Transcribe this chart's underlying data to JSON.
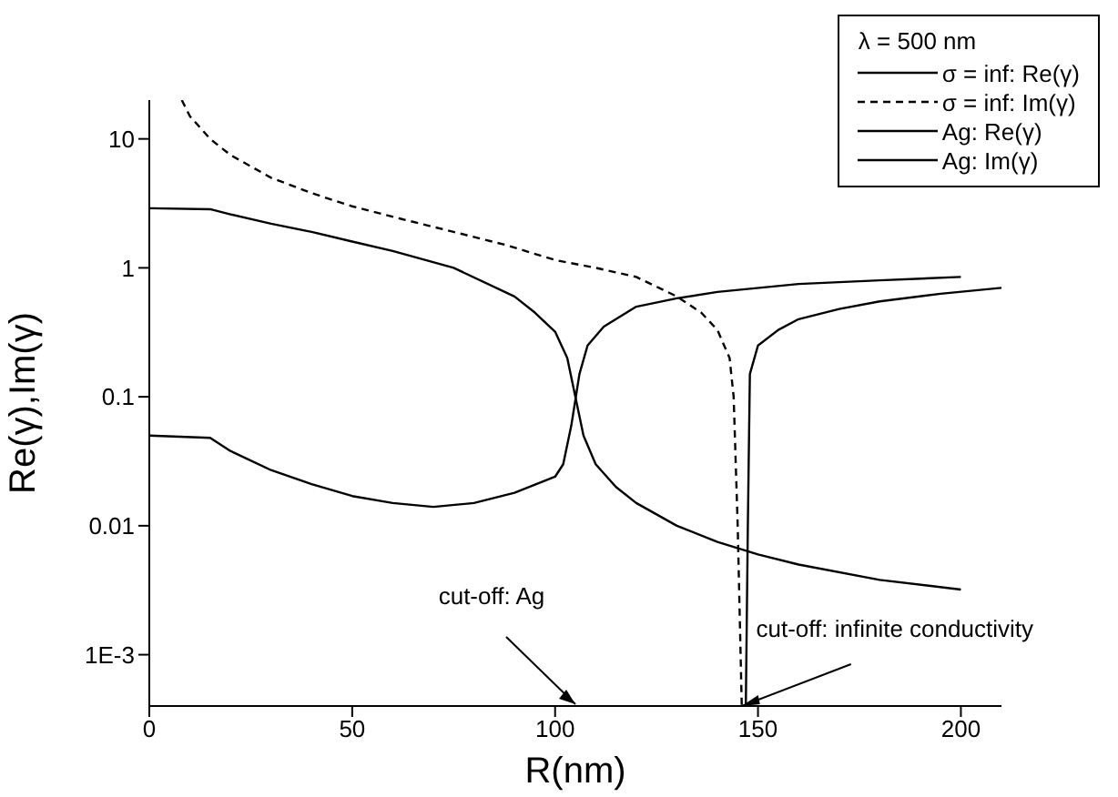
{
  "chart_data": {
    "type": "line",
    "xlabel": "R(nm)",
    "ylabel": "Re(γ),Im(γ)",
    "legend_title": "λ = 500 nm",
    "legend": "top right",
    "log": "y",
    "grid": false,
    "marker": "none",
    "xlim": [
      0,
      210
    ],
    "xticks": [
      0,
      50,
      100,
      150,
      200
    ],
    "ylim": [
      0.0004,
      20
    ],
    "yticks": [
      10,
      1,
      0.1,
      0.01,
      {
        "value": 0.001,
        "label": "1E-3"
      }
    ],
    "series": [
      {
        "name": "σ = inf: Re(γ)",
        "color": "#000000",
        "line_style": "solid",
        "x": [
          147,
          147.5,
          148,
          150,
          155,
          160,
          170,
          180,
          195,
          210
        ],
        "values": [
          0.0004,
          0.01,
          0.15,
          0.25,
          0.33,
          0.4,
          0.48,
          0.55,
          0.63,
          0.7
        ]
      },
      {
        "name": "σ = inf: Im(γ)",
        "color": "#000000",
        "line_style": "dashed",
        "x": [
          8,
          10,
          15,
          20,
          30,
          40,
          50,
          62,
          75,
          88,
          100,
          110,
          120,
          130,
          136,
          140,
          143,
          144,
          145,
          145.5,
          146
        ],
        "values": [
          20,
          15,
          10,
          7.5,
          5,
          3.8,
          3,
          2.4,
          1.9,
          1.5,
          1.15,
          1,
          0.85,
          0.6,
          0.45,
          0.33,
          0.2,
          0.1,
          0.01,
          0.002,
          0.0004
        ]
      },
      {
        "name": "Ag: Re(γ)",
        "color": "#000000",
        "line_style": "solid",
        "x": [
          0,
          15,
          20,
          30,
          40,
          50,
          60,
          70,
          80,
          90,
          100,
          102,
          104,
          106,
          108,
          112,
          120,
          130,
          140,
          160,
          180,
          200
        ],
        "values": [
          0.05,
          0.048,
          0.038,
          0.027,
          0.021,
          0.017,
          0.015,
          0.014,
          0.015,
          0.018,
          0.024,
          0.03,
          0.06,
          0.15,
          0.25,
          0.35,
          0.5,
          0.58,
          0.65,
          0.75,
          0.8,
          0.85
        ]
      },
      {
        "name": "Ag: Im(γ)",
        "color": "#000000",
        "line_style": "solid",
        "x": [
          0,
          15,
          20,
          30,
          40,
          50,
          60,
          75,
          90,
          95,
          100,
          103,
          105,
          107,
          110,
          115,
          120,
          130,
          140,
          150,
          160,
          180,
          200
        ],
        "values": [
          2.9,
          2.85,
          2.6,
          2.2,
          1.9,
          1.6,
          1.35,
          1,
          0.6,
          0.45,
          0.32,
          0.2,
          0.1,
          0.05,
          0.03,
          0.02,
          0.015,
          0.01,
          0.0075,
          0.006,
          0.005,
          0.0038,
          0.0032
        ]
      }
    ],
    "annotations": [
      "cut-off: Ag",
      {
        "text": "cut-off: infinite conductivity",
        "x": 146,
        "y": 0.0004
      }
    ]
  }
}
